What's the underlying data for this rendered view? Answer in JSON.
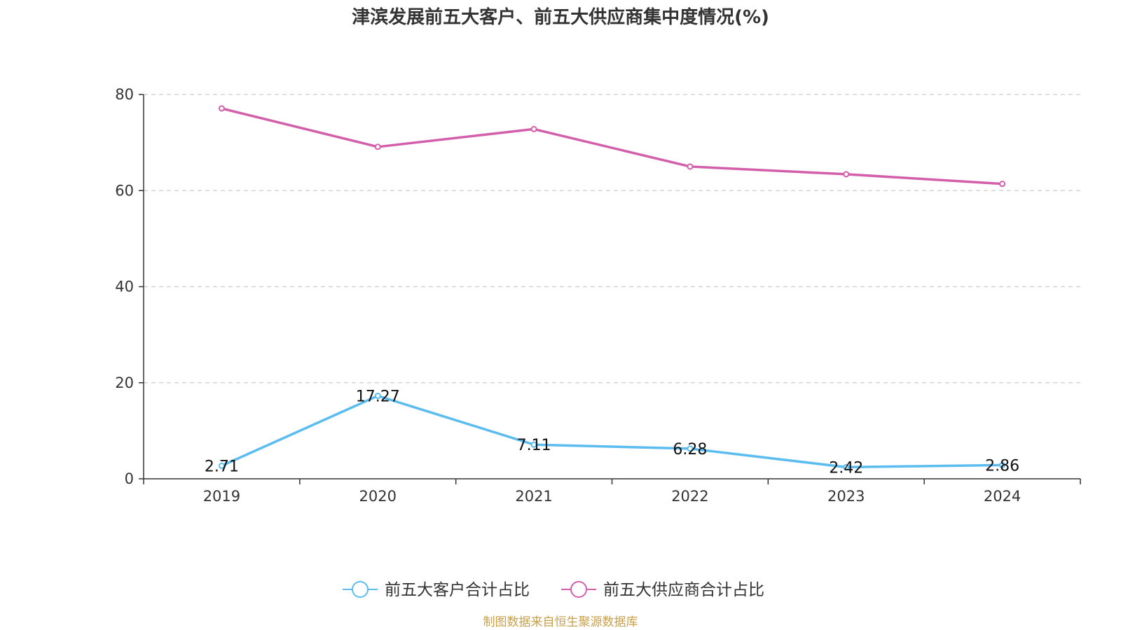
{
  "chart_data": {
    "type": "line",
    "title": "津滨发展前五大客户、前五大供应商集中度情况(%)",
    "categories": [
      "2019",
      "2020",
      "2021",
      "2022",
      "2023",
      "2024"
    ],
    "series": [
      {
        "name": "前五大客户合计占比",
        "color": "#5bbcef",
        "values": [
          2.71,
          17.27,
          7.11,
          6.28,
          2.42,
          2.86
        ],
        "labels": [
          "2.71",
          "17.27",
          "7.11",
          "6.28",
          "2.42",
          "2.86"
        ],
        "show_labels": true
      },
      {
        "name": "前五大供应商合计占比",
        "color": "#d35fab",
        "values": [
          77.1,
          69.1,
          72.8,
          65.0,
          63.4,
          61.4
        ],
        "show_labels": false
      }
    ],
    "ylim": [
      0,
      80
    ],
    "yticks": [
      "0",
      "20",
      "40",
      "60",
      "80"
    ],
    "ytick_values": [
      0,
      20,
      40,
      60,
      80
    ],
    "grid": true,
    "legend_position": "bottom-center",
    "xlabel": "",
    "ylabel": ""
  },
  "source": "制图数据来自恒生聚源数据库"
}
